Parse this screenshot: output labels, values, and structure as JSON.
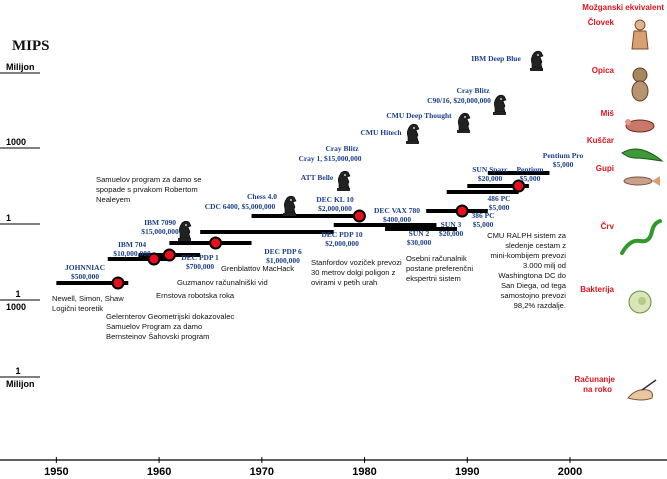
{
  "chart_data": {
    "type": "scatter",
    "title": "MIPS",
    "xlim": [
      1945,
      2000
    ],
    "x_ticks": [
      "1950",
      "1960",
      "1970",
      "1980",
      "1990",
      "2000"
    ],
    "y_ticks": [
      {
        "label": "Milijon"
      },
      {
        "label": "1000"
      },
      {
        "label": "1"
      },
      {
        "label_top": "1",
        "label_bottom": "1000"
      },
      {
        "label_top": "1",
        "label_bottom": "Milijon"
      }
    ],
    "side_title": "Možganski ekvivalent",
    "side_items": [
      {
        "label": "Človek",
        "icon": "human-figure"
      },
      {
        "label": "Opica",
        "icon": "monkey-figure"
      },
      {
        "label": "Miš",
        "icon": "mouse-figure"
      },
      {
        "label": "Kuščar",
        "icon": "lizard-figure"
      },
      {
        "label": "Gupi",
        "icon": "guppy-figure"
      },
      {
        "label": "Črv",
        "icon": "worm-figure"
      },
      {
        "label": "Bakterija",
        "icon": "bacterium-figure"
      },
      {
        "label": "Računanje na roko",
        "icon": "hand-writing-figure"
      }
    ],
    "bars": [
      {
        "x0": 1950,
        "x1": 1957
      },
      {
        "x0": 1955,
        "x1": 1961
      },
      {
        "x0": 1958,
        "x1": 1964
      },
      {
        "x0": 1961,
        "x1": 1969
      },
      {
        "x0": 1964,
        "x1": 1977
      },
      {
        "x0": 1969,
        "x1": 1980
      },
      {
        "x0": 1977,
        "x1": 1987
      },
      {
        "x0": 1982,
        "x1": 1989
      },
      {
        "x0": 1986,
        "x1": 1992
      },
      {
        "x0": 1988,
        "x1": 1995
      },
      {
        "x0": 1990,
        "x1": 1996
      },
      {
        "x0": 1992,
        "x1": 1998
      }
    ],
    "highlights": [
      {
        "x": 1956,
        "note": "johnniac"
      },
      {
        "x": 1959.5,
        "note": "ibm704"
      },
      {
        "x": 1961,
        "note": "gelernter"
      },
      {
        "x": 1965.5,
        "note": "greenblatt"
      },
      {
        "x": 1979.5,
        "note": "stanford"
      },
      {
        "x": 1989.5,
        "note": "workstation"
      },
      {
        "x": 1995,
        "note": "ralph"
      }
    ],
    "computers": [
      {
        "text": "JOHNNIAC",
        "x": 1952,
        "sub": "$500,000"
      },
      {
        "text": "IBM 704",
        "x": 1957,
        "sub": "$10,000,000"
      },
      {
        "text": "IBM 7090",
        "x": 1959,
        "sub": "$15,000,000"
      },
      {
        "text": "DEC PDP 1",
        "x": 1962,
        "sub": "$700,000"
      },
      {
        "text": "CDC 6400, $5,000,000",
        "x": 1971
      },
      {
        "text": "Chess 4.0",
        "x": 1971
      },
      {
        "text": "DEC PDP 6",
        "x": 1972,
        "sub": "$1,000,000"
      },
      {
        "text": "Cray 1, $15,000,000",
        "x": 1978
      },
      {
        "text": "Cray Blitz",
        "x": 1978
      },
      {
        "text": "ATT Belle",
        "x": 1978
      },
      {
        "text": "DEC KL 10",
        "x": 1977,
        "sub": "$2,000,000"
      },
      {
        "text": "DEC PDP 10",
        "x": 1978,
        "sub": "$2,000,000"
      },
      {
        "text": "DEC VAX 780",
        "x": 1983,
        "sub": "$400,000"
      },
      {
        "text": "SUN 2",
        "x": 1985,
        "sub": "$30,000"
      },
      {
        "text": "SUN 3",
        "x": 1989,
        "sub": "$20,000"
      },
      {
        "text": "386 PC",
        "x": 1991,
        "sub": "$5,000"
      },
      {
        "text": "CMU Hitech",
        "x": 1985
      },
      {
        "text": "CMU Deep Thought",
        "x": 1988
      },
      {
        "text": "Cray Blitz",
        "x": 1992
      },
      {
        "text": "C90/16, $20,000,000",
        "x": 1992
      },
      {
        "text": "IBM Deep Blue",
        "x": 1994
      },
      {
        "text": "SUN Sparc",
        "x": 1992,
        "sub": "$20,000"
      },
      {
        "text": "486 PC",
        "x": 1993,
        "sub": "$5,000"
      },
      {
        "text": "Pentium",
        "x": 1995,
        "sub": "$5,000"
      },
      {
        "text": "Pentium Pro",
        "x": 1998,
        "sub": "$5,000"
      }
    ],
    "notes": {
      "johnniac": [
        "Newell, Simon, Shaw",
        "Logični teoretik"
      ],
      "samuel": [
        "Samuelov program za damo se",
        "spopade s prvakom Robertom",
        "Nealeyem"
      ],
      "gelernter": [
        "Gelernterov Geometrijski dokazovalec",
        "Samuelov Program za damo",
        "Bernsteinov Šahovski program"
      ],
      "ernst": [
        "Ernstova robotska roka"
      ],
      "guzman": [
        "Guzmanov računalniški vid"
      ],
      "greenblatt": [
        "Grenblattov MacHack"
      ],
      "stanford": [
        "Stanfordov voziček prevozi",
        "30 metrov dolgi poligon z",
        "ovirami v petih urah"
      ],
      "workstation": [
        "Osebni računalnik",
        "postane preferenčni",
        "ekspertni sistem"
      ],
      "ralph": [
        "CMU RALPH sistem za",
        "sledenje cestam z",
        "mini-kombijem prevozi",
        "3.000 milj od",
        "Washingtona DC do",
        "San Diega, od tega",
        "samostojno prevozi",
        "98,2% razdalje."
      ]
    }
  }
}
